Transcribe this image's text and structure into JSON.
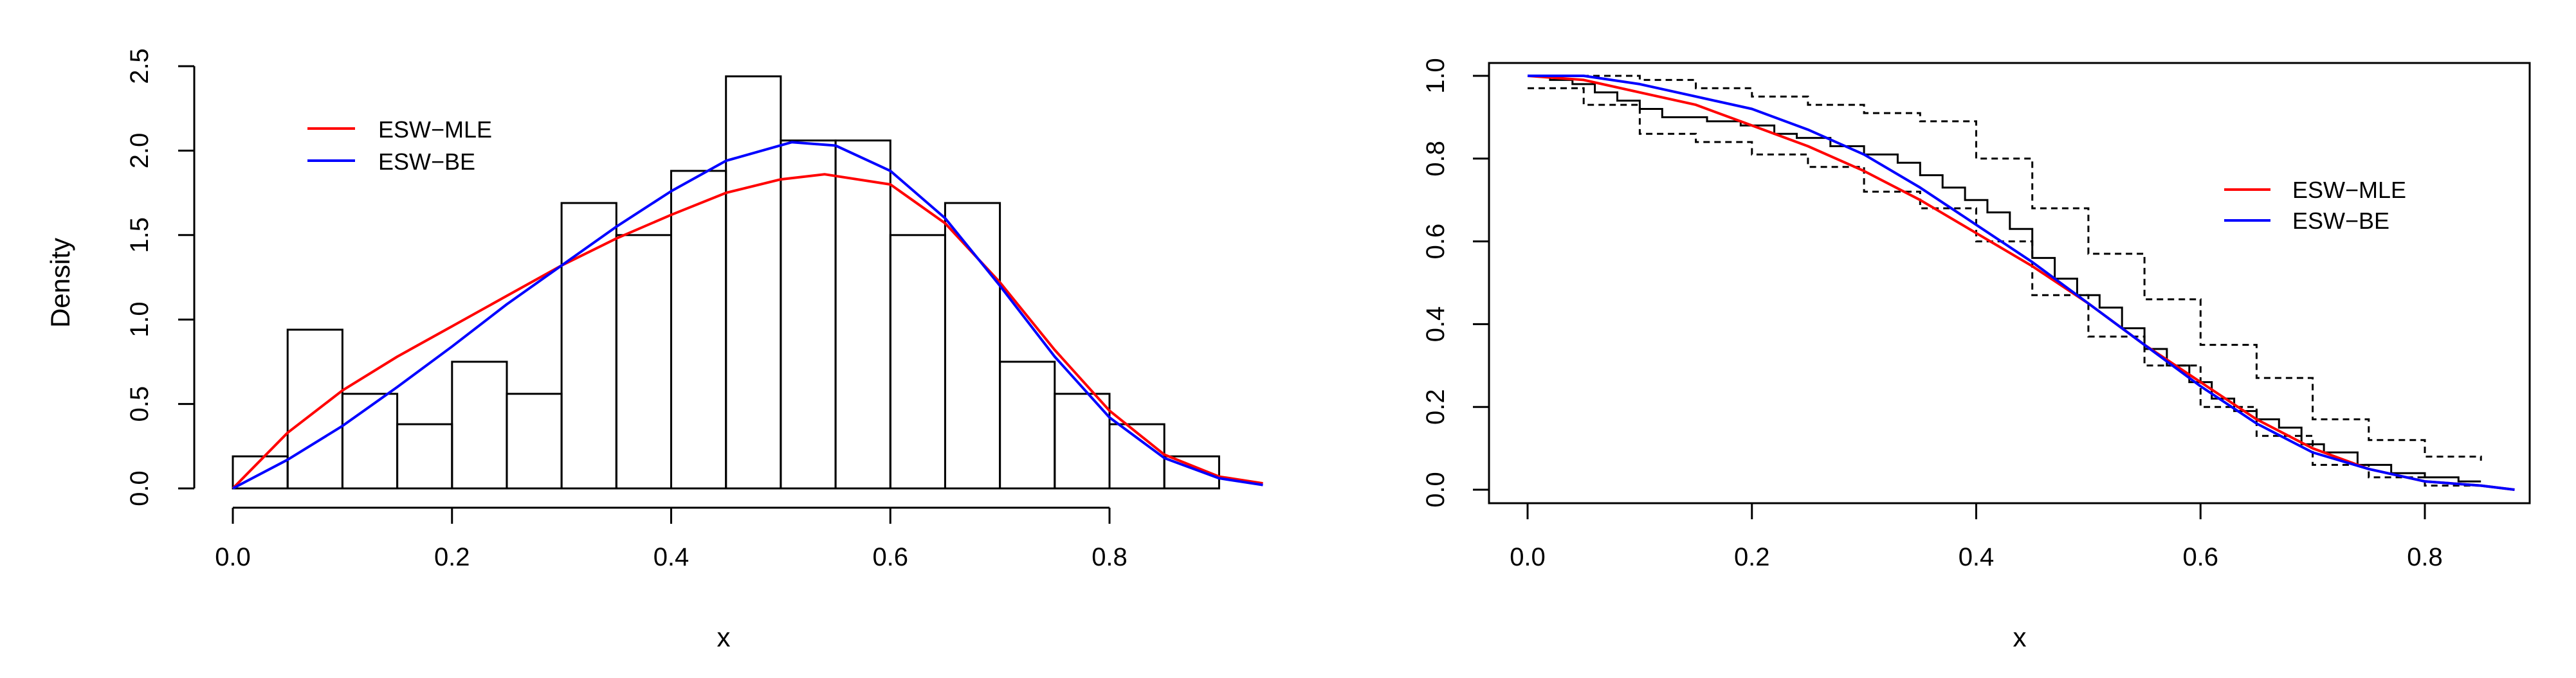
{
  "chart_data": [
    {
      "type": "histogram",
      "xlabel": "x",
      "ylabel": "Density",
      "xlim": [
        0.0,
        0.95
      ],
      "ylim": [
        0.0,
        2.5
      ],
      "xticks": [
        "0.0",
        "0.2",
        "0.4",
        "0.6",
        "0.8"
      ],
      "yticks": [
        "0.0",
        "0.5",
        "1.0",
        "1.5",
        "2.0",
        "2.5"
      ],
      "legend_position": "top-left",
      "bin_edges": [
        0.0,
        0.05,
        0.1,
        0.15,
        0.2,
        0.25,
        0.3,
        0.35,
        0.4,
        0.45,
        0.5,
        0.55,
        0.6,
        0.65,
        0.7,
        0.75,
        0.8,
        0.85,
        0.9
      ],
      "bin_densities": [
        0.19,
        0.94,
        0.56,
        0.38,
        0.75,
        0.56,
        1.69,
        1.5,
        1.88,
        2.44,
        2.06,
        2.06,
        1.5,
        1.69,
        0.75,
        0.56,
        0.38,
        0.19
      ],
      "series": [
        {
          "name": "ESW−MLE",
          "color": "#ff0000",
          "x": [
            0.0,
            0.05,
            0.1,
            0.15,
            0.2,
            0.25,
            0.3,
            0.35,
            0.4,
            0.45,
            0.5,
            0.54,
            0.6,
            0.65,
            0.7,
            0.75,
            0.8,
            0.85,
            0.9,
            0.94
          ],
          "y": [
            0.0,
            0.33,
            0.58,
            0.78,
            0.96,
            1.14,
            1.32,
            1.48,
            1.62,
            1.75,
            1.83,
            1.86,
            1.8,
            1.57,
            1.22,
            0.82,
            0.46,
            0.2,
            0.07,
            0.03
          ]
        },
        {
          "name": "ESW−BE",
          "color": "#0000ff",
          "x": [
            0.0,
            0.05,
            0.1,
            0.15,
            0.2,
            0.25,
            0.3,
            0.35,
            0.4,
            0.45,
            0.51,
            0.55,
            0.6,
            0.65,
            0.7,
            0.75,
            0.8,
            0.85,
            0.9,
            0.94
          ],
          "y": [
            0.0,
            0.17,
            0.37,
            0.6,
            0.84,
            1.09,
            1.32,
            1.55,
            1.76,
            1.94,
            2.05,
            2.03,
            1.88,
            1.6,
            1.2,
            0.78,
            0.42,
            0.18,
            0.06,
            0.02
          ]
        }
      ]
    },
    {
      "type": "line",
      "xlabel": "x",
      "ylabel": "",
      "xlim": [
        -0.03,
        0.9
      ],
      "ylim": [
        -0.02,
        1.03
      ],
      "xticks": [
        "0.0",
        "0.2",
        "0.4",
        "0.6",
        "0.8"
      ],
      "yticks": [
        "0.0",
        "0.2",
        "0.4",
        "0.6",
        "0.8",
        "1.0"
      ],
      "legend_position": "right",
      "empirical_survival": {
        "color": "#000000",
        "x": [
          0.0,
          0.02,
          0.04,
          0.06,
          0.08,
          0.1,
          0.12,
          0.14,
          0.16,
          0.19,
          0.22,
          0.24,
          0.27,
          0.3,
          0.33,
          0.35,
          0.37,
          0.39,
          0.41,
          0.43,
          0.45,
          0.47,
          0.49,
          0.51,
          0.53,
          0.55,
          0.57,
          0.59,
          0.61,
          0.63,
          0.65,
          0.67,
          0.69,
          0.71,
          0.74,
          0.77,
          0.8,
          0.83,
          0.85
        ],
        "y": [
          1.0,
          0.99,
          0.98,
          0.96,
          0.94,
          0.92,
          0.9,
          0.9,
          0.89,
          0.88,
          0.86,
          0.85,
          0.83,
          0.81,
          0.79,
          0.76,
          0.73,
          0.7,
          0.67,
          0.63,
          0.56,
          0.51,
          0.47,
          0.44,
          0.39,
          0.34,
          0.3,
          0.26,
          0.22,
          0.19,
          0.17,
          0.15,
          0.11,
          0.09,
          0.06,
          0.04,
          0.03,
          0.02,
          0.02
        ]
      },
      "confidence_band": {
        "color": "#000000",
        "style": "dashed",
        "upper": {
          "x": [
            0.0,
            0.05,
            0.1,
            0.15,
            0.2,
            0.25,
            0.3,
            0.35,
            0.4,
            0.45,
            0.5,
            0.55,
            0.6,
            0.65,
            0.7,
            0.75,
            0.8,
            0.85
          ],
          "y": [
            1.0,
            1.0,
            0.99,
            0.97,
            0.95,
            0.93,
            0.91,
            0.89,
            0.8,
            0.68,
            0.57,
            0.46,
            0.35,
            0.27,
            0.17,
            0.12,
            0.08,
            0.07
          ]
        },
        "lower": {
          "x": [
            0.0,
            0.05,
            0.1,
            0.15,
            0.2,
            0.25,
            0.3,
            0.35,
            0.4,
            0.45,
            0.5,
            0.55,
            0.6,
            0.65,
            0.7,
            0.75,
            0.8,
            0.85
          ],
          "y": [
            0.97,
            0.93,
            0.86,
            0.84,
            0.81,
            0.78,
            0.72,
            0.68,
            0.6,
            0.47,
            0.37,
            0.3,
            0.2,
            0.13,
            0.06,
            0.03,
            0.01,
            0.0
          ]
        }
      },
      "series": [
        {
          "name": "ESW−MLE",
          "color": "#ff0000",
          "x": [
            0.0,
            0.05,
            0.1,
            0.15,
            0.2,
            0.25,
            0.3,
            0.35,
            0.4,
            0.45,
            0.5,
            0.55,
            0.6,
            0.65,
            0.7,
            0.75,
            0.8,
            0.85,
            0.88
          ],
          "y": [
            1.0,
            0.99,
            0.96,
            0.93,
            0.88,
            0.83,
            0.77,
            0.7,
            0.62,
            0.54,
            0.45,
            0.35,
            0.26,
            0.17,
            0.1,
            0.05,
            0.02,
            0.01,
            0.0
          ]
        },
        {
          "name": "ESW−BE",
          "color": "#0000ff",
          "x": [
            0.0,
            0.05,
            0.1,
            0.15,
            0.2,
            0.25,
            0.3,
            0.35,
            0.4,
            0.45,
            0.5,
            0.55,
            0.6,
            0.65,
            0.7,
            0.75,
            0.8,
            0.85,
            0.88
          ],
          "y": [
            1.0,
            1.0,
            0.98,
            0.95,
            0.92,
            0.87,
            0.81,
            0.73,
            0.64,
            0.55,
            0.45,
            0.35,
            0.25,
            0.16,
            0.09,
            0.05,
            0.02,
            0.01,
            0.0
          ]
        }
      ]
    }
  ]
}
